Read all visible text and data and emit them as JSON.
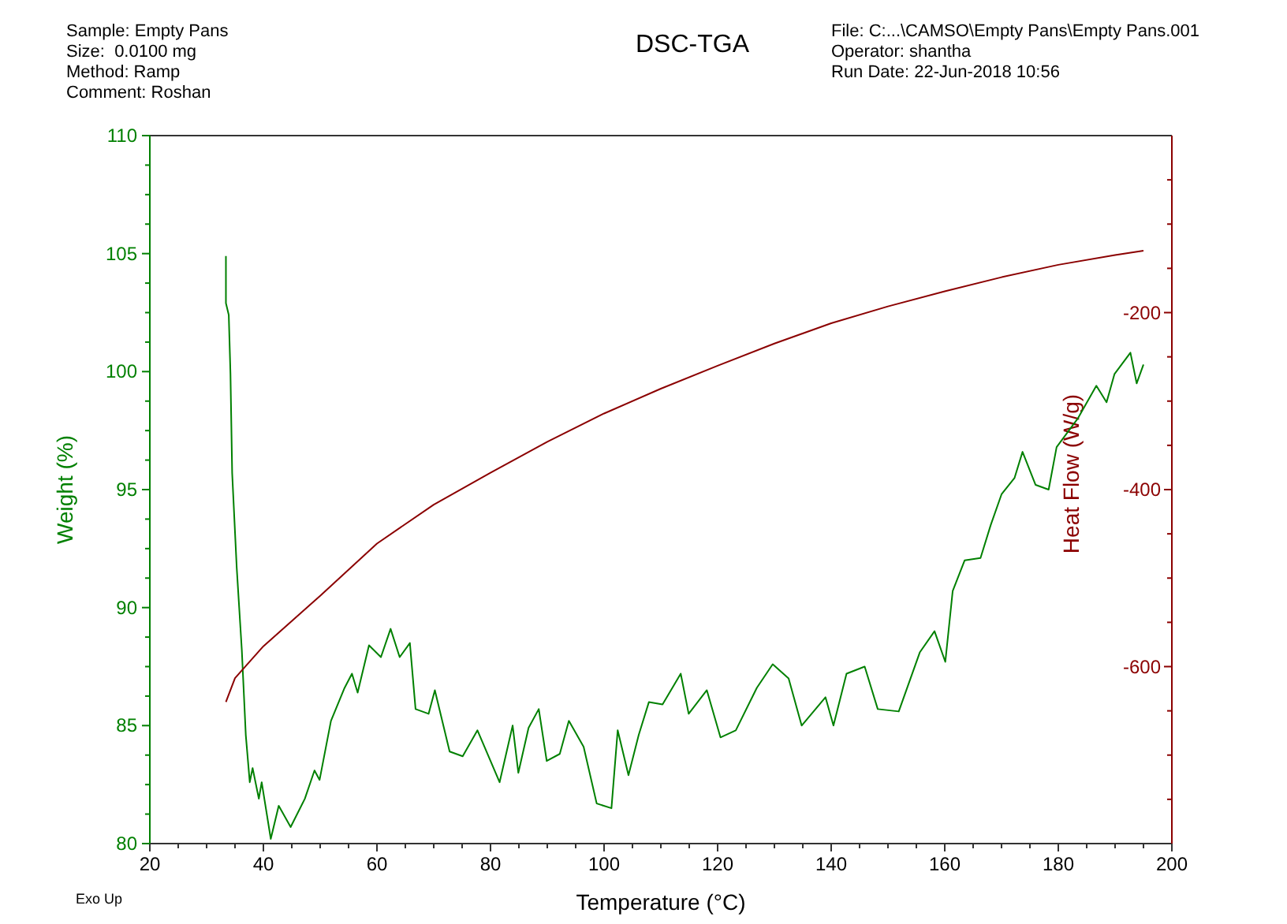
{
  "chart_data": {
    "type": "line",
    "title": "DSC-TGA",
    "xlabel": "Temperature (°C)",
    "ylabel": "Weight (%)",
    "y2label": "Heat Flow (W/g)",
    "annotations": [
      "Sample: Empty Pans",
      "Size:  0.0100 mg",
      "Method: Ramp",
      "Comment: Roshan",
      "File: C:...\\CAMSO\\Empty Pans\\Empty Pans.001",
      "Operator: shantha",
      "Run Date: 22-Jun-2018 10:56",
      "Exo Up"
    ],
    "xlim": [
      20,
      200
    ],
    "xticks": [
      20,
      {
        "value": 25,
        "label": null
      },
      {
        "value": 30,
        "label": null
      },
      {
        "value": 35,
        "label": null
      },
      40,
      {
        "value": 45,
        "label": null
      },
      {
        "value": 50,
        "label": null
      },
      {
        "value": 55,
        "label": null
      },
      60,
      {
        "value": 65,
        "label": null
      },
      {
        "value": 70,
        "label": null
      },
      {
        "value": 75,
        "label": null
      },
      80,
      {
        "value": 85,
        "label": null
      },
      {
        "value": 90,
        "label": null
      },
      {
        "value": 95,
        "label": null
      },
      100,
      {
        "value": 105,
        "label": null
      },
      {
        "value": 110,
        "label": null
      },
      {
        "value": 115,
        "label": null
      },
      120,
      {
        "value": 125,
        "label": null
      },
      {
        "value": 130,
        "label": null
      },
      {
        "value": 135,
        "label": null
      },
      140,
      {
        "value": 145,
        "label": null
      },
      {
        "value": 150,
        "label": null
      },
      {
        "value": 155,
        "label": null
      },
      160,
      {
        "value": 165,
        "label": null
      },
      {
        "value": 170,
        "label": null
      },
      {
        "value": 175,
        "label": null
      },
      180,
      {
        "value": 185,
        "label": null
      },
      {
        "value": 190,
        "label": null
      },
      {
        "value": 195,
        "label": null
      },
      200
    ],
    "ylim": [
      80,
      110
    ],
    "yticks": [
      80,
      {
        "value": 81.25,
        "label": null
      },
      {
        "value": 82.5,
        "label": null
      },
      {
        "value": 83.75,
        "label": null
      },
      85,
      {
        "value": 86.25,
        "label": null
      },
      {
        "value": 87.5,
        "label": null
      },
      {
        "value": 88.75,
        "label": null
      },
      90,
      {
        "value": 91.25,
        "label": null
      },
      {
        "value": 92.5,
        "label": null
      },
      {
        "value": 93.75,
        "label": null
      },
      95,
      {
        "value": 96.25,
        "label": null
      },
      {
        "value": 97.5,
        "label": null
      },
      {
        "value": 98.75,
        "label": null
      },
      100,
      {
        "value": 101.25,
        "label": null
      },
      {
        "value": 102.5,
        "label": null
      },
      {
        "value": 103.75,
        "label": null
      },
      105,
      {
        "value": 106.25,
        "label": null
      },
      {
        "value": 107.5,
        "label": null
      },
      {
        "value": 108.75,
        "label": null
      },
      110
    ],
    "y2lim": [
      -800,
      0
    ],
    "y2ticks": [
      {
        "value": -750,
        "label": null
      },
      {
        "value": -700,
        "label": null
      },
      {
        "value": -650,
        "label": null
      },
      -600,
      {
        "value": -550,
        "label": null
      },
      {
        "value": -500,
        "label": null
      },
      {
        "value": -450,
        "label": null
      },
      -400,
      {
        "value": -350,
        "label": null
      },
      {
        "value": -300,
        "label": null
      },
      {
        "value": -250,
        "label": null
      },
      -200,
      {
        "value": -150,
        "label": null
      },
      {
        "value": -100,
        "label": null
      },
      {
        "value": -50,
        "label": null
      }
    ],
    "grid": false,
    "series": [
      {
        "color": "#008000",
        "x": [
          33.4,
          33.4,
          33.9,
          34.2,
          34.5,
          35.3,
          36.2,
          36.9,
          37.6,
          38.1,
          39.2,
          39.7,
          41.3,
          42.7,
          44.8,
          47.3,
          49.0,
          49.9,
          51.9,
          54.3,
          55.6,
          56.6,
          58.6,
          60.7,
          62.4,
          64.0,
          65.8,
          66.8,
          69.1,
          70.2,
          72.8,
          75.1,
          77.7,
          81.6,
          83.9,
          84.9,
          86.7,
          88.5,
          89.9,
          92.2,
          93.8,
          96.4,
          98.7,
          101.3,
          102.4,
          104.3,
          106.1,
          107.9,
          110.3,
          113.5,
          114.9,
          118.1,
          120.5,
          123.2,
          126.9,
          129.7,
          132.5,
          134.8,
          139.0,
          140.4,
          142.7,
          145.9,
          148.2,
          151.9,
          155.6,
          158.2,
          160.1,
          161.4,
          163.5,
          166.3,
          168.1,
          170.0,
          172.3,
          173.7,
          176.0,
          178.3,
          179.7,
          183.4,
          186.7,
          188.5,
          189.9,
          192.7,
          193.8,
          195.0
        ],
        "values": [
          104.9,
          102.9,
          102.4,
          99.9,
          95.7,
          91.7,
          88.2,
          84.6,
          82.6,
          83.2,
          81.9,
          82.6,
          80.2,
          81.6,
          80.7,
          81.9,
          83.1,
          82.7,
          85.2,
          86.6,
          87.2,
          86.4,
          88.4,
          87.9,
          89.1,
          87.9,
          88.5,
          85.7,
          85.5,
          86.5,
          83.9,
          83.7,
          84.8,
          82.6,
          85.0,
          83.0,
          84.9,
          85.7,
          83.5,
          83.8,
          85.2,
          84.1,
          81.7,
          81.5,
          84.8,
          82.9,
          84.6,
          86.0,
          85.9,
          87.2,
          85.5,
          86.5,
          84.5,
          84.8,
          86.6,
          87.6,
          87.0,
          85.0,
          86.2,
          85.0,
          87.2,
          87.5,
          85.7,
          85.6,
          88.1,
          89.0,
          87.7,
          90.7,
          92.0,
          92.1,
          93.5,
          94.8,
          95.5,
          96.6,
          95.2,
          95.0,
          96.8,
          98.0,
          99.4,
          98.7,
          99.9,
          100.8,
          99.5,
          100.3
        ]
      },
      {
        "color": "#8b0000",
        "axis": "y2",
        "x": [
          33.4,
          35,
          40,
          50,
          60,
          70,
          80,
          90,
          100,
          110,
          120,
          130,
          140,
          150,
          160,
          170,
          180,
          190,
          195
        ],
        "values": [
          -640,
          -613,
          -577,
          -520,
          -461,
          -417,
          -381,
          -346,
          -314,
          -286,
          -260,
          -235,
          -212,
          -193,
          -176,
          -160,
          -146,
          -135,
          -130
        ]
      }
    ]
  }
}
